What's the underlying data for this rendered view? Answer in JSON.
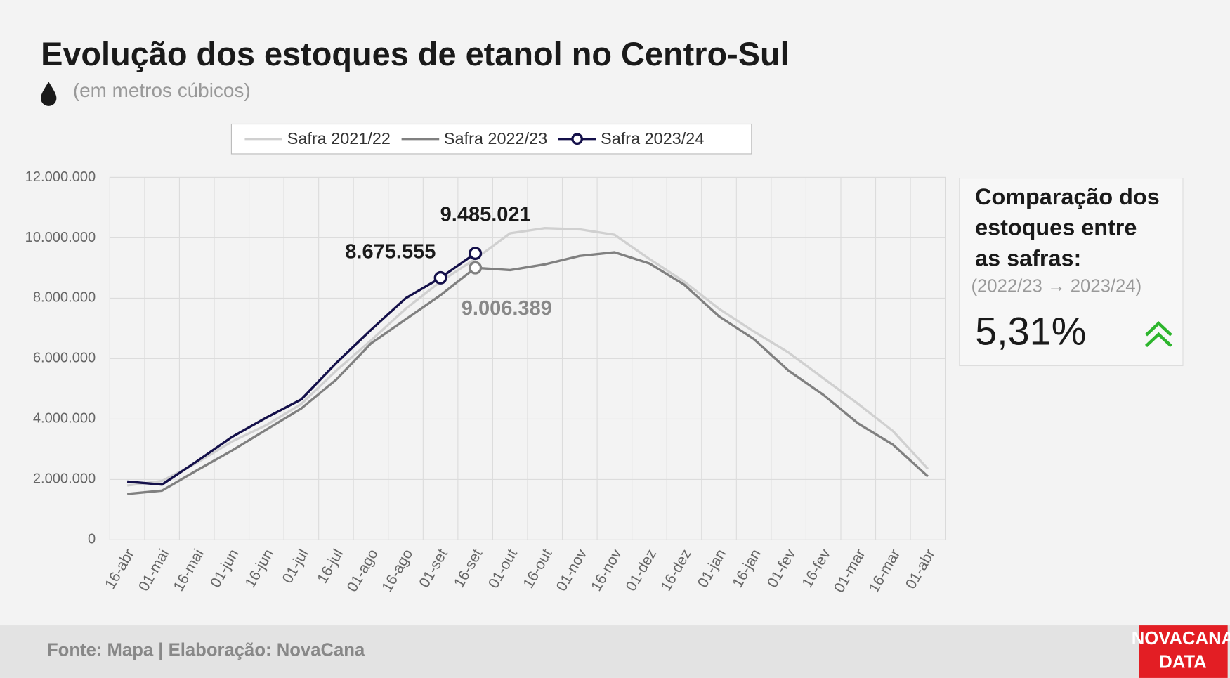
{
  "chart_data": {
    "type": "line",
    "title": "Evolução dos estoques de  etanol no Centro-Sul",
    "subtitle": "(em metros cúbicos)",
    "categories": [
      "16-abr",
      "01-mai",
      "16-mai",
      "01-jun",
      "16-jun",
      "01-jul",
      "16-jul",
      "01-ago",
      "16-ago",
      "01-set",
      "16-set",
      "01-out",
      "16-out",
      "01-nov",
      "16-nov",
      "01-dez",
      "16-dez",
      "01-jan",
      "16-jan",
      "01-fev",
      "16-fev",
      "01-mar",
      "16-mar",
      "01-abr"
    ],
    "series": [
      {
        "name": "Safra 2021/22",
        "color": "#d0d0d0",
        "values": [
          1800000,
          1950000,
          2550000,
          3250000,
          3800000,
          4500000,
          5600000,
          6600000,
          7650000,
          8550000,
          9300000,
          10150000,
          10320000,
          10280000,
          10100000,
          9300000,
          8550000,
          7650000,
          6900000,
          6200000,
          5350000,
          4500000,
          3600000,
          2350000
        ]
      },
      {
        "name": "Safra 2022/23",
        "color": "#808080",
        "values": [
          1520000,
          1630000,
          2300000,
          2950000,
          3650000,
          4350000,
          5300000,
          6500000,
          7300000,
          8100000,
          9006389,
          8930000,
          9120000,
          9400000,
          9520000,
          9150000,
          8450000,
          7400000,
          6650000,
          5600000,
          4800000,
          3850000,
          3150000,
          2100000
        ],
        "value_labels": [
          null,
          null,
          null,
          null,
          null,
          null,
          null,
          null,
          null,
          null,
          "9.006.389",
          null,
          null,
          null,
          null,
          null,
          null,
          null,
          null,
          null,
          null,
          null,
          null,
          null
        ]
      },
      {
        "name": "Safra 2023/24",
        "color": "#14104a",
        "values": [
          1930000,
          1830000,
          2600000,
          3400000,
          4050000,
          4650000,
          5850000,
          6950000,
          8000000,
          8675555,
          9485021,
          null,
          null,
          null,
          null,
          null,
          null,
          null,
          null,
          null,
          null,
          null,
          null,
          null
        ],
        "value_labels": [
          null,
          null,
          null,
          null,
          null,
          null,
          null,
          null,
          null,
          "8.675.555",
          "9.485.021",
          null,
          null,
          null,
          null,
          null,
          null,
          null,
          null,
          null,
          null,
          null,
          null,
          null
        ]
      }
    ],
    "ylim": [
      0,
      12000000
    ],
    "yticks": [
      0,
      {
        "value": 2000000,
        "label": "2.000.000"
      },
      {
        "value": 4000000,
        "label": "4.000.000"
      },
      {
        "value": 6000000,
        "label": "6.000.000"
      },
      {
        "value": 8000000,
        "label": "8.000.000"
      },
      {
        "value": 10000000,
        "label": "10.000.000"
      },
      {
        "value": 12000000,
        "label": "12.000.000"
      }
    ],
    "grid": true,
    "legend": "top"
  },
  "comparison": {
    "title_lines": [
      "Comparação dos",
      "estoques entre",
      "as safras:"
    ],
    "period": "(2022/23 → 2023/24)",
    "value": "5,31%"
  },
  "footer": {
    "source": "Fonte: Mapa | Elaboração: NovaCana",
    "logo": [
      "NOVACANA",
      "DATA"
    ]
  }
}
